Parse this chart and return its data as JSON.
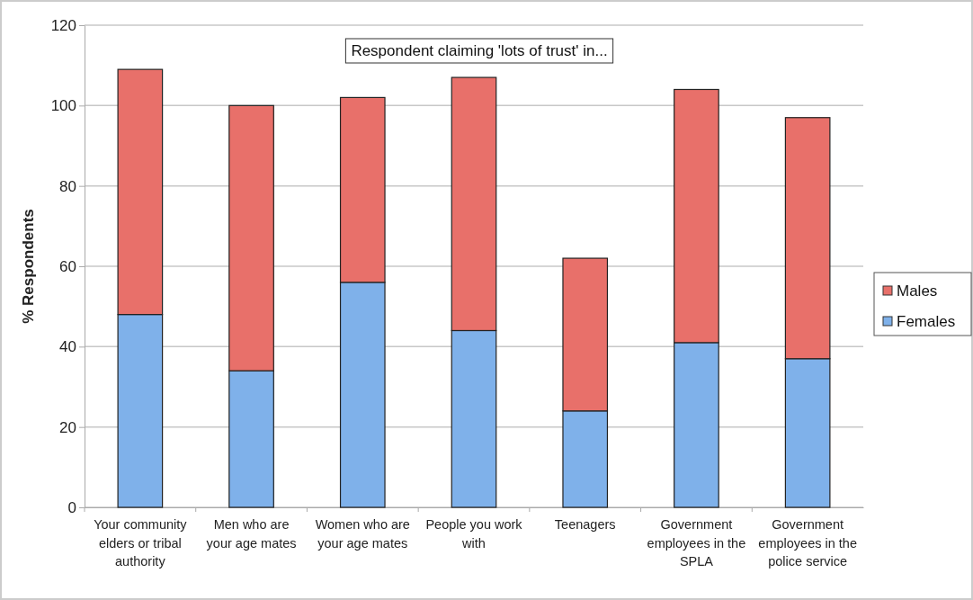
{
  "chart_data": {
    "type": "bar",
    "title": "Respondent claiming 'lots of trust' in...",
    "ylabel": "% Respondents",
    "categories": [
      "Your community elders or tribal authority",
      "Men who are your age mates",
      "Women who are your age mates",
      "People you work with",
      "Teenagers",
      "Government employees in the SPLA",
      "Government employees in the police service"
    ],
    "series": [
      {
        "name": "Females",
        "color": "#7fb1ea",
        "values": [
          48,
          34,
          56,
          44,
          24,
          41,
          37
        ]
      },
      {
        "name": "Males",
        "color": "#e8706a",
        "values": [
          61,
          66,
          46,
          63,
          38,
          63,
          60
        ]
      }
    ],
    "stacked": true,
    "ylim": [
      0,
      120
    ],
    "yticks": [
      0,
      20,
      40,
      60,
      80,
      100,
      120
    ],
    "grid": "y",
    "legend": "right"
  }
}
